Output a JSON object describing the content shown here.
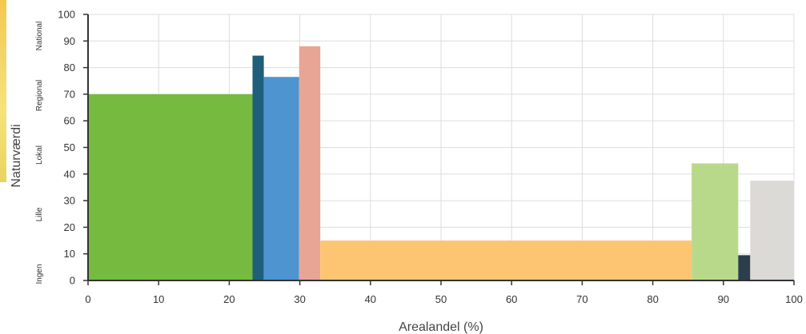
{
  "chart_data": {
    "type": "bar",
    "xlabel": "Arealandel (%)",
    "ylabel": "Naturværdi",
    "xlim": [
      0,
      100
    ],
    "ylim": [
      0,
      100
    ],
    "x_ticks": [
      0,
      10,
      20,
      30,
      40,
      50,
      60,
      70,
      80,
      90,
      100
    ],
    "y_ticks": [
      0,
      10,
      20,
      30,
      40,
      50,
      60,
      70,
      80,
      90,
      100
    ],
    "grid": true,
    "value_bands": [
      "Ingen",
      "Lille",
      "Lokal",
      "Regional",
      "National"
    ],
    "bars": [
      {
        "x_start": 0,
        "x_end": 23.3,
        "value": 70,
        "color": "#76bb40"
      },
      {
        "x_start": 23.3,
        "x_end": 24.9,
        "value": 84.5,
        "color": "#1f5f7a"
      },
      {
        "x_start": 24.9,
        "x_end": 29.9,
        "value": 76.5,
        "color": "#4e94d1"
      },
      {
        "x_start": 29.9,
        "x_end": 32.9,
        "value": 88,
        "color": "#e8a595"
      },
      {
        "x_start": 32.9,
        "x_end": 85.5,
        "value": 15,
        "color": "#fdc572"
      },
      {
        "x_start": 85.5,
        "x_end": 92.1,
        "value": 44,
        "color": "#b9d98a"
      },
      {
        "x_start": 92.1,
        "x_end": 93.8,
        "value": 9.5,
        "color": "#2c3e4c"
      },
      {
        "x_start": 93.8,
        "x_end": 100,
        "value": 37.5,
        "color": "#dcdad6"
      }
    ]
  }
}
